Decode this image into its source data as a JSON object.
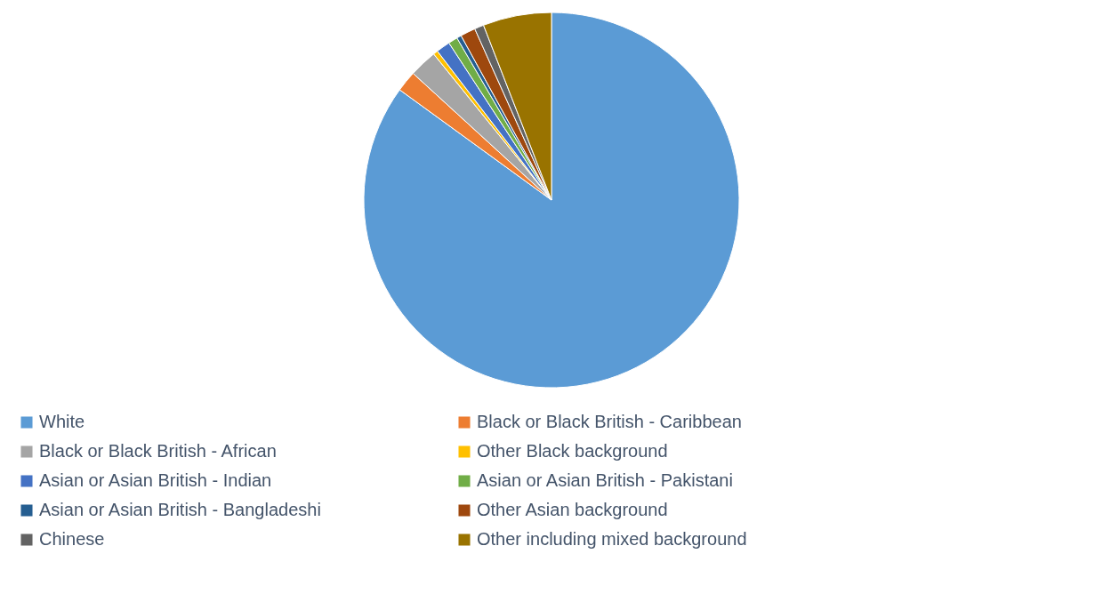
{
  "chart_data": {
    "type": "pie",
    "categories": [
      "White",
      "Black or Black British - Caribbean",
      "Black or Black British - African",
      "Other Black background",
      "Asian or Asian British - Indian",
      "Asian or Asian British - Pakistani",
      "Asian or Asian British - Bangladeshi",
      "Other Asian background",
      "Chinese",
      "Other including mixed background"
    ],
    "values": [
      85.0,
      1.8,
      2.4,
      0.4,
      1.2,
      0.8,
      0.4,
      1.3,
      0.8,
      5.9
    ],
    "colors": [
      "#5b9bd5",
      "#ed7d31",
      "#a5a5a5",
      "#ffc000",
      "#4472c4",
      "#70ad47",
      "#255e91",
      "#9e480e",
      "#636363",
      "#997300"
    ],
    "legend": "bottom"
  }
}
